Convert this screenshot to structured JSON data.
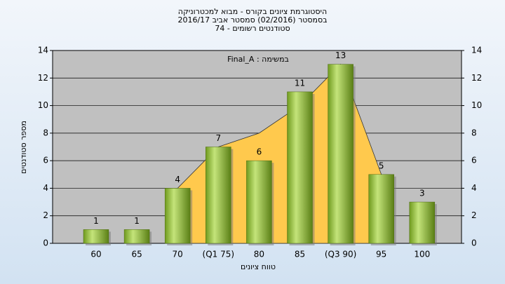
{
  "chart_data": {
    "type": "bar",
    "title": [
      "היסטוגרמת ציונים בקורס - מבוא למכטרוניקה",
      "בסמסטר  (02/2016)  סמסטר אביב 2016/17",
      "סטודנטים רשומים - 74"
    ],
    "annotation": "Final_A : במשימה",
    "x_label": "טווח ציונים",
    "y_label": "מספר סטודנטים",
    "categories": [
      "60",
      "65",
      "70",
      "(Q1 75)",
      "80",
      "85",
      "(Q3 90)",
      "95",
      "100"
    ],
    "values": [
      1,
      1,
      4,
      7,
      6,
      11,
      13,
      5,
      3
    ],
    "color": "#9acd32",
    "band": {
      "color": "#ffc94d",
      "values": [
        null,
        null,
        4,
        7,
        8,
        10,
        13,
        5,
        null
      ]
    },
    "ylim": [
      0,
      14
    ],
    "yticks": [
      0,
      2,
      4,
      6,
      8,
      10,
      12,
      14
    ],
    "grid": true
  }
}
